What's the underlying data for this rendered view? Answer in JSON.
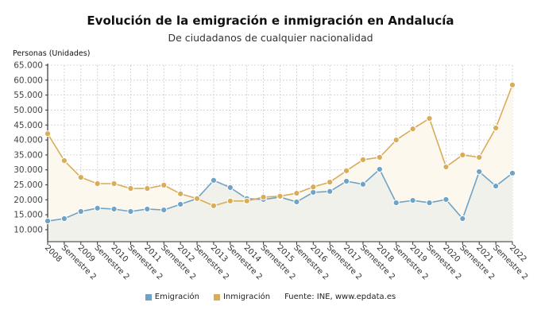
{
  "header": {
    "title": "Evolución de la emigración e inmigración en Andalucía",
    "subtitle": "De ciudadanos de cualquier nacionalidad",
    "y_axis_label": "Personas (Unidades)"
  },
  "legend": {
    "items": [
      {
        "label": "Emigración",
        "color": "#6fa3c6"
      },
      {
        "label": "Inmigración",
        "color": "#d9ac5a"
      }
    ],
    "source": "Fuente: INE, www.epdata.es"
  },
  "chart_data": {
    "type": "line",
    "title": "Evolución de la emigración e inmigración en Andalucía",
    "subtitle": "De ciudadanos de cualquier nacionalidad",
    "xlabel": "",
    "ylabel": "Personas (Unidades)",
    "ylim": [
      6000,
      65000
    ],
    "y_ticks": [
      10000,
      15000,
      20000,
      25000,
      30000,
      35000,
      40000,
      45000,
      50000,
      55000,
      60000,
      65000
    ],
    "y_tick_labels": [
      "10.000",
      "15.000",
      "20.000",
      "25.000",
      "30.000",
      "35.000",
      "40.000",
      "45.000",
      "50.000",
      "55.000",
      "60.000",
      "65.000"
    ],
    "grid": true,
    "legend_position": "bottom",
    "x": [
      "2008",
      "Semestre 2",
      "2009",
      "Semestre 2",
      "2010",
      "Semestre 2",
      "2011",
      "Semestre 2",
      "2012",
      "Semestre 2",
      "2013",
      "Semestre 2",
      "2014",
      "Semestre 2",
      "2015",
      "Semestre 2",
      "2016",
      "Semestre 2",
      "2017",
      "Semestre 2",
      "2018",
      "Semestre 2",
      "2019",
      "Semestre 2",
      "2020",
      "Semestre 2",
      "2021",
      "Semestre 2",
      "2022"
    ],
    "series": [
      {
        "name": "Emigración",
        "color": "#6fa3c6",
        "fill": "#f0f0ea",
        "values": [
          12900,
          13700,
          16100,
          17200,
          16900,
          16100,
          16900,
          16600,
          18500,
          20400,
          26500,
          24100,
          20400,
          20100,
          20900,
          19300,
          22500,
          22800,
          26200,
          25200,
          30200,
          19000,
          19800,
          19000,
          20100,
          13700,
          29400,
          24600,
          28900
        ]
      },
      {
        "name": "Inmigración",
        "color": "#d9ac5a",
        "fill": "#fdf8ee",
        "values": [
          42100,
          33100,
          27500,
          25400,
          25400,
          23800,
          23800,
          24900,
          22000,
          20400,
          18000,
          19600,
          19600,
          20900,
          21200,
          22200,
          24300,
          25900,
          29700,
          33400,
          34200,
          40000,
          43700,
          47200,
          31000,
          35000,
          34200,
          44000,
          58400
        ]
      }
    ]
  }
}
